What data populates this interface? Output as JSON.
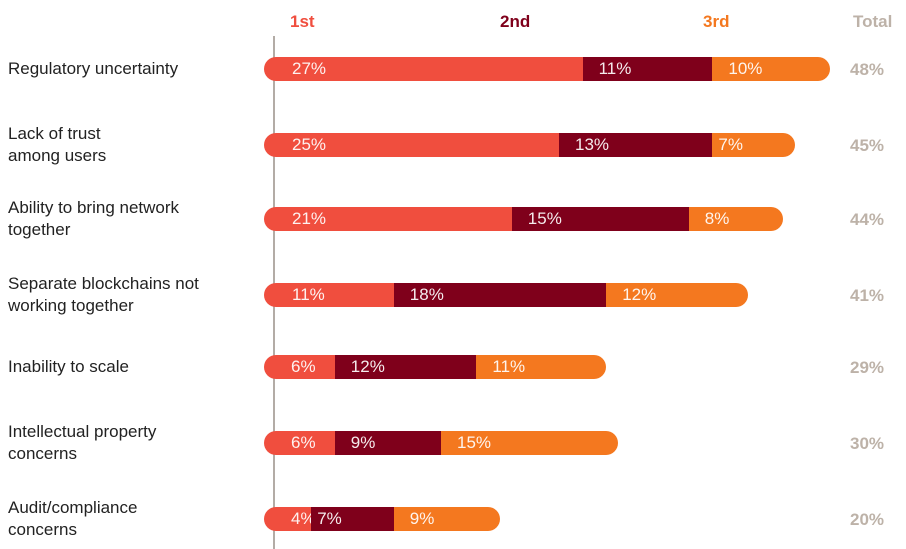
{
  "chart_data": {
    "type": "bar",
    "orientation": "horizontal",
    "stacked": true,
    "colors": {
      "first": "#f04e3e",
      "second": "#7f001b",
      "third": "#f4781f",
      "total": "#bdb2a8",
      "axis": "#b3aca6"
    },
    "columns": {
      "first": "1st",
      "second": "2nd",
      "third": "3rd",
      "total": "Total"
    },
    "categories": [
      [
        "Regulatory uncertainty"
      ],
      [
        "Lack of trust",
        "among users"
      ],
      [
        "Ability to bring network",
        "together"
      ],
      [
        "Separate blockchains not",
        "working together"
      ],
      [
        "Inability to scale"
      ],
      [
        "Intellectual property",
        "concerns"
      ],
      [
        "Audit/compliance",
        "concerns"
      ]
    ],
    "series": [
      {
        "name": "1st",
        "values": [
          27,
          25,
          21,
          11,
          6,
          6,
          4
        ],
        "labels": [
          "27%",
          "25%",
          "21%",
          "11%",
          "6%",
          "6%",
          "4%"
        ]
      },
      {
        "name": "2nd",
        "values": [
          11,
          13,
          15,
          18,
          12,
          9,
          7
        ],
        "labels": [
          "11%",
          "13%",
          "15%",
          "18%",
          "12%",
          "9%",
          "7%"
        ]
      },
      {
        "name": "3rd",
        "values": [
          10,
          7,
          8,
          12,
          11,
          15,
          9
        ],
        "labels": [
          "10%",
          "7%",
          "8%",
          "12%",
          "11%",
          "15%",
          "9%"
        ]
      }
    ],
    "totals": [
      "48%",
      "45%",
      "44%",
      "41%",
      "29%",
      "30%",
      "20%"
    ]
  }
}
